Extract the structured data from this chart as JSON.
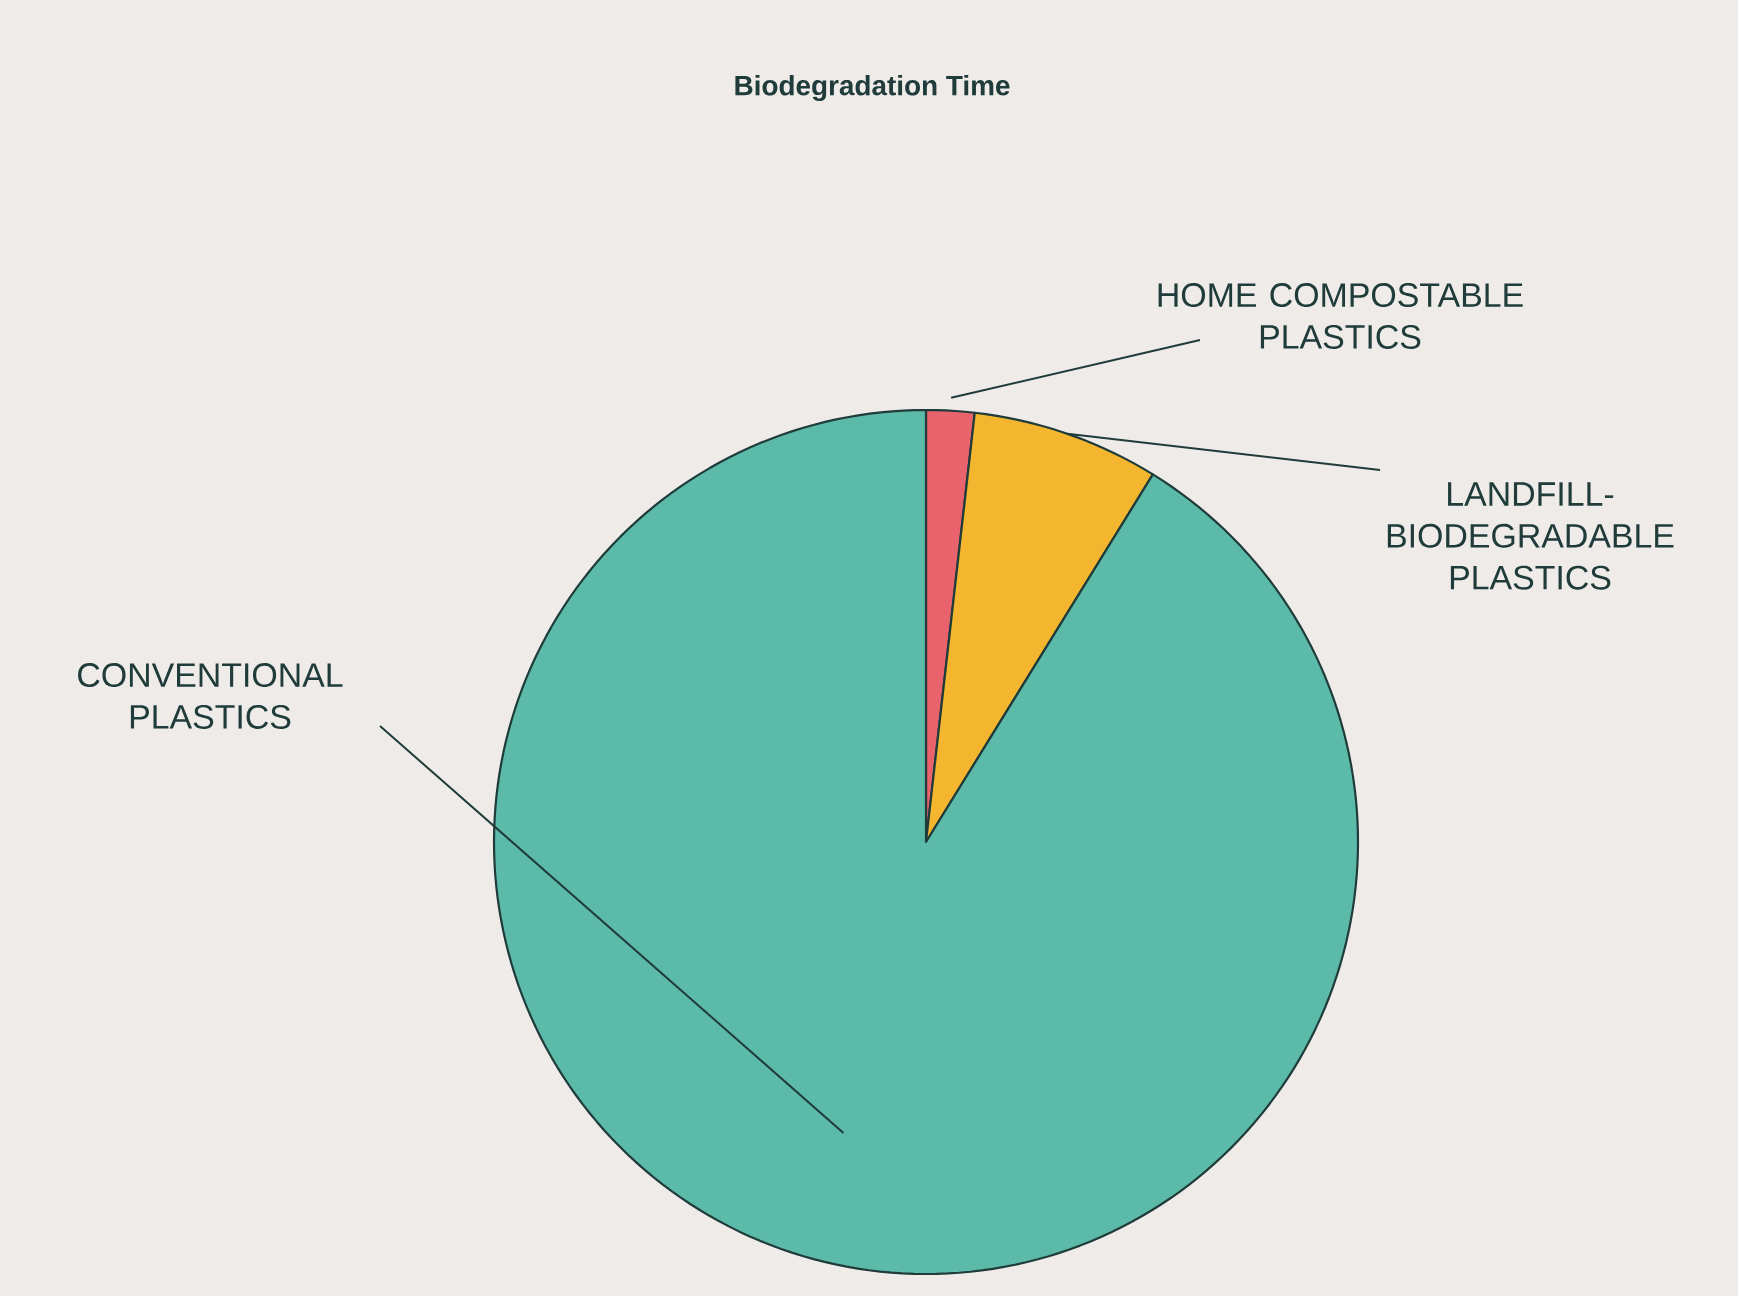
{
  "chart_data": {
    "type": "pie",
    "title": "Biodegradation Time",
    "categories": [
      "HOME COMPOSTABLE PLASTICS",
      "LANDFILL-BIODEGRADABLE PLASTICS",
      "CONVENTIONAL PLASTICS"
    ],
    "values": [
      1.8,
      7,
      91.2
    ],
    "colors": [
      "#e8636b",
      "#f4b52f",
      "#5cbaa9"
    ],
    "legend": false
  }
}
